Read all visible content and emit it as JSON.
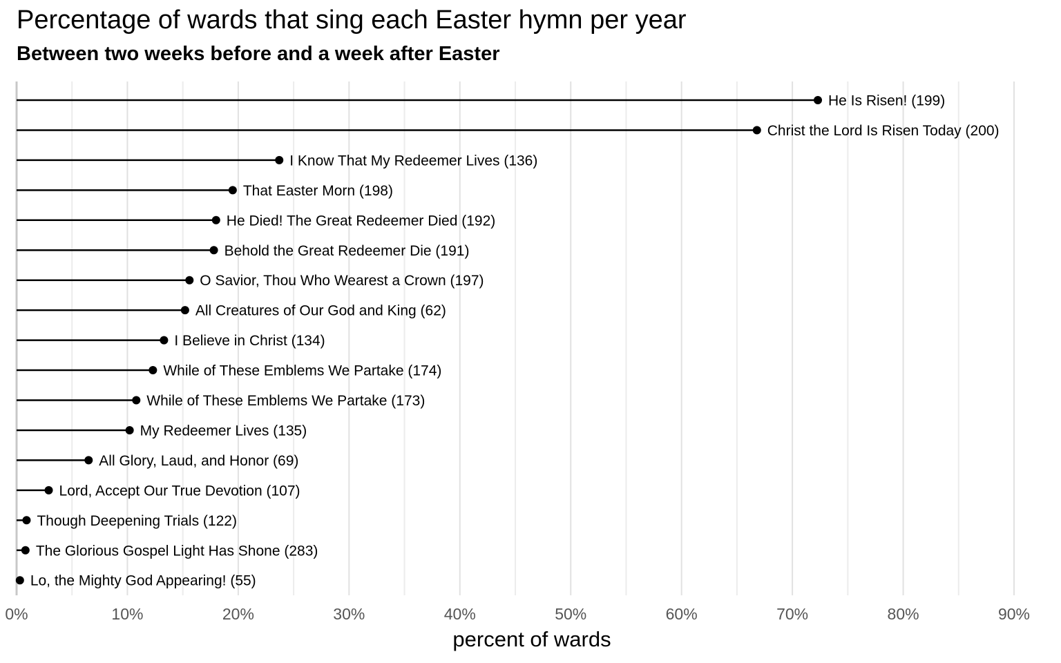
{
  "chart_data": {
    "type": "lollipop",
    "title": "Percentage of wards that sing each Easter hymn per year",
    "subtitle": "Between two weeks before and a week after Easter",
    "xlabel": "percent of wards",
    "ylabel": "",
    "xlim": [
      0,
      90
    ],
    "x_ticks": [
      0,
      10,
      20,
      30,
      40,
      50,
      60,
      70,
      80,
      90
    ],
    "x_tick_labels": [
      "0%",
      "10%",
      "20%",
      "30%",
      "40%",
      "50%",
      "60%",
      "70%",
      "80%",
      "90%"
    ],
    "grid": true,
    "series": [
      {
        "label": "He Is Risen! (199)",
        "value": 72.3
      },
      {
        "label": "Christ the Lord Is Risen Today (200)",
        "value": 66.8
      },
      {
        "label": "I Know That My Redeemer Lives (136)",
        "value": 23.7
      },
      {
        "label": "That Easter Morn (198)",
        "value": 19.5
      },
      {
        "label": "He Died! The Great Redeemer Died (192)",
        "value": 18.0
      },
      {
        "label": "Behold the Great Redeemer Die (191)",
        "value": 17.8
      },
      {
        "label": "O Savior, Thou Who Wearest a Crown (197)",
        "value": 15.6
      },
      {
        "label": "All Creatures of Our God and King (62)",
        "value": 15.2
      },
      {
        "label": "I Believe in Christ (134)",
        "value": 13.3
      },
      {
        "label": "While of These Emblems We Partake (174)",
        "value": 12.3
      },
      {
        "label": "While of These Emblems We Partake (173)",
        "value": 10.8
      },
      {
        "label": "My Redeemer Lives (135)",
        "value": 10.2
      },
      {
        "label": "All Glory, Laud, and Honor (69)",
        "value": 6.5
      },
      {
        "label": "Lord, Accept Our True Devotion (107)",
        "value": 2.9
      },
      {
        "label": "Though Deepening Trials (122)",
        "value": 0.9
      },
      {
        "label": "The Glorious Gospel Light Has Shone (283)",
        "value": 0.8
      },
      {
        "label": "Lo, the Mighty God Appearing! (55)",
        "value": 0.3
      }
    ]
  }
}
